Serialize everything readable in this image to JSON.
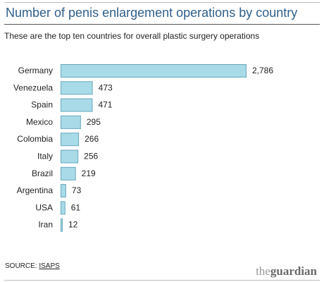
{
  "header": {
    "title": "Number of penis enlargement operations by country",
    "subtitle": "These are the top ten countries for overall plastic surgery operations"
  },
  "footer": {
    "source_label": "SOURCE: ",
    "source_link": "ISAPS",
    "logo_the": "the",
    "logo_brand": "guardian"
  },
  "colors": {
    "title": "#2f5f8a",
    "bar_fill": "#a8dae7",
    "bar_stroke": "#6aa7bd",
    "text": "#222222"
  },
  "chart_data": {
    "type": "bar",
    "orientation": "horizontal",
    "title": "Number of penis enlargement operations by country",
    "subtitle": "These are the top ten countries for overall plastic surgery operations",
    "categories": [
      "Germany",
      "Venezuela",
      "Spain",
      "Mexico",
      "Colombia",
      "Italy",
      "Brazil",
      "Argentina",
      "USA",
      "Iran"
    ],
    "values": [
      2786,
      473,
      471,
      295,
      266,
      256,
      219,
      73,
      61,
      12
    ],
    "value_labels": [
      "2,786",
      "473",
      "471",
      "295",
      "266",
      "256",
      "219",
      "73",
      "61",
      "12"
    ],
    "xlim": [
      0,
      2786
    ],
    "grid": false,
    "legend": "none"
  }
}
